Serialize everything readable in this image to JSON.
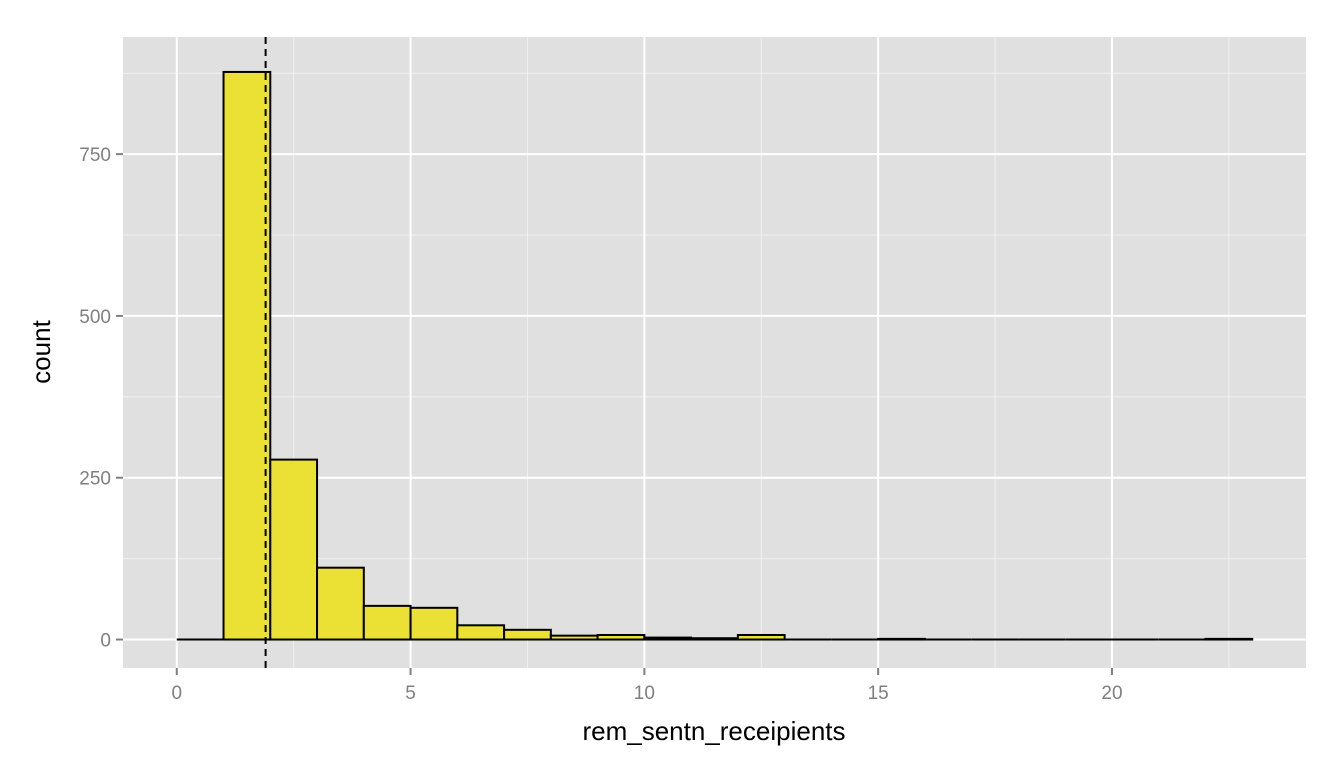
{
  "chart_data": {
    "type": "bar",
    "xlabel": "rem_sentn_receipients",
    "ylabel": "count",
    "xlim": [
      -1.15,
      24.15
    ],
    "ylim": [
      -44,
      931
    ],
    "x_ticks": [
      0,
      5,
      10,
      15,
      20
    ],
    "y_ticks": [
      0,
      250,
      500,
      750
    ],
    "bin_width": 1,
    "bins": [
      {
        "start": 0,
        "end": 1,
        "count": 0
      },
      {
        "start": 1,
        "end": 2,
        "count": 877
      },
      {
        "start": 2,
        "end": 3,
        "count": 278
      },
      {
        "start": 3,
        "end": 4,
        "count": 111
      },
      {
        "start": 4,
        "end": 5,
        "count": 52
      },
      {
        "start": 5,
        "end": 6,
        "count": 49
      },
      {
        "start": 6,
        "end": 7,
        "count": 22
      },
      {
        "start": 7,
        "end": 8,
        "count": 15
      },
      {
        "start": 8,
        "end": 9,
        "count": 6
      },
      {
        "start": 9,
        "end": 10,
        "count": 7
      },
      {
        "start": 10,
        "end": 11,
        "count": 3
      },
      {
        "start": 11,
        "end": 12,
        "count": 2
      },
      {
        "start": 12,
        "end": 13,
        "count": 7
      },
      {
        "start": 13,
        "end": 14,
        "count": 0
      },
      {
        "start": 14,
        "end": 15,
        "count": 0
      },
      {
        "start": 15,
        "end": 16,
        "count": 1
      },
      {
        "start": 16,
        "end": 17,
        "count": 0
      },
      {
        "start": 17,
        "end": 18,
        "count": 0
      },
      {
        "start": 18,
        "end": 19,
        "count": 0
      },
      {
        "start": 19,
        "end": 20,
        "count": 0
      },
      {
        "start": 20,
        "end": 21,
        "count": 0
      },
      {
        "start": 21,
        "end": 22,
        "count": 0
      },
      {
        "start": 22,
        "end": 23,
        "count": 1
      }
    ],
    "reference_line": {
      "x": 1.9,
      "style": "dashed"
    },
    "grid": true,
    "colors": {
      "bar_fill": "#ebe034",
      "bar_stroke": "#000000",
      "panel_background": "#e0e0e0",
      "gridline": "#ffffff",
      "tick_label": "#7f7f7f"
    }
  }
}
